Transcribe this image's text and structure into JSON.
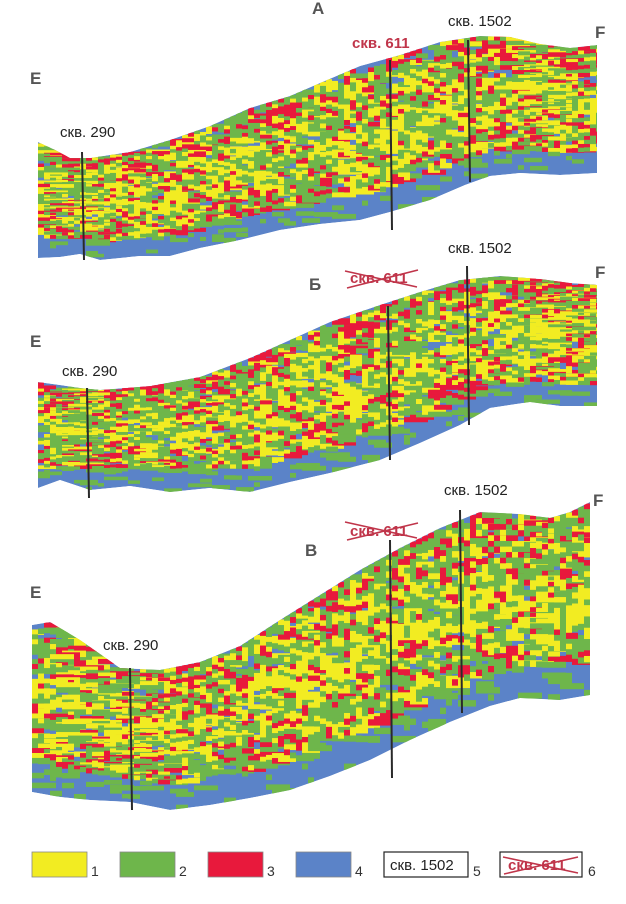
{
  "colors": {
    "facies_1": "#f2ec22",
    "facies_2": "#6eb64b",
    "facies_3": "#e8193c",
    "facies_4": "#5b83c8",
    "well_line": "#2a2a2a",
    "strike": "#c0354a"
  },
  "panels": [
    {
      "id": "A",
      "label": "А",
      "left_end": "E",
      "right_end": "F",
      "wells": [
        {
          "name": "скв. 290",
          "state": "active"
        },
        {
          "name": "скв. 611",
          "state": "highlighted"
        },
        {
          "name": "скв. 1502",
          "state": "active"
        }
      ]
    },
    {
      "id": "B",
      "label": "Б",
      "left_end": "E",
      "right_end": "F",
      "wells": [
        {
          "name": "скв. 290",
          "state": "active"
        },
        {
          "name": "скв. 611",
          "state": "excluded"
        },
        {
          "name": "скв. 1502",
          "state": "active"
        }
      ]
    },
    {
      "id": "C",
      "label": "В",
      "left_end": "E",
      "right_end": "F",
      "wells": [
        {
          "name": "скв. 290",
          "state": "active"
        },
        {
          "name": "скв. 611",
          "state": "excluded"
        },
        {
          "name": "скв. 1502",
          "state": "active"
        }
      ]
    }
  ],
  "legend": [
    {
      "num": "1",
      "type": "swatch",
      "color_key": "facies_1"
    },
    {
      "num": "2",
      "type": "swatch",
      "color_key": "facies_2"
    },
    {
      "num": "3",
      "type": "swatch",
      "color_key": "facies_3"
    },
    {
      "num": "4",
      "type": "swatch",
      "color_key": "facies_4"
    },
    {
      "num": "5",
      "type": "well-box",
      "text": "скв. 1502"
    },
    {
      "num": "6",
      "type": "well-box-crossed",
      "text": "скв. 611"
    }
  ]
}
